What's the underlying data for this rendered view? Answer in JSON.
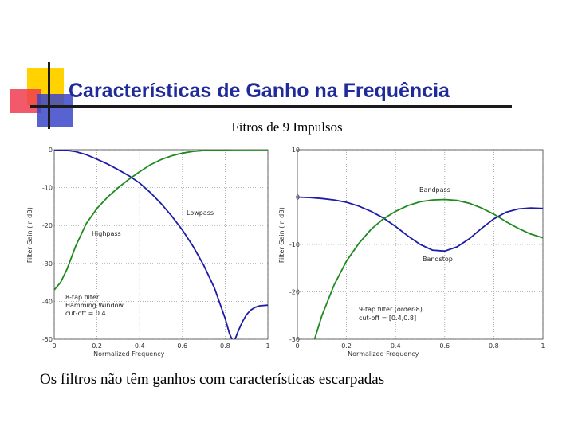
{
  "slide": {
    "title": "Características de Ganho na Frequência",
    "subtitle": "Fitros de 9 Impulsos",
    "caption": "Os filtros não têm ganhos com características escarpadas"
  },
  "colors": {
    "title": "#1f2a9b",
    "blue_curve": "#1c1ca8",
    "green_curve": "#1e8a1e"
  },
  "chart_data": [
    {
      "type": "line",
      "xlabel": "Normalized Frequency",
      "ylabel": "Filter Gain (in dB)",
      "xlim": [
        0,
        1
      ],
      "ylim": [
        -50,
        0
      ],
      "xticks": [
        0,
        0.2,
        0.4,
        0.6,
        0.8,
        1
      ],
      "yticks": [
        0,
        -10,
        -20,
        -30,
        -40,
        -50
      ],
      "grid": true,
      "annotations": [
        "Lowpass",
        "Highpass",
        "8-tap filter",
        "Hamming Window",
        "cut-off = 0.4"
      ],
      "series": [
        {
          "name": "Lowpass",
          "color": "blue",
          "x": [
            0,
            0.05,
            0.1,
            0.15,
            0.2,
            0.25,
            0.3,
            0.35,
            0.4,
            0.45,
            0.5,
            0.55,
            0.6,
            0.65,
            0.7,
            0.75,
            0.8,
            0.82,
            0.84,
            0.86,
            0.88,
            0.9,
            0.92,
            0.94,
            0.96,
            0.98,
            1.0
          ],
          "y": [
            0,
            -0.1,
            -0.5,
            -1.3,
            -2.5,
            -3.8,
            -5.3,
            -6.9,
            -8.8,
            -11.3,
            -14.2,
            -17.5,
            -21.2,
            -25.5,
            -30.5,
            -36.5,
            -44.5,
            -48.5,
            -51,
            -48,
            -45.5,
            -43.5,
            -42.3,
            -41.6,
            -41.2,
            -41.1,
            -41
          ]
        },
        {
          "name": "Highpass",
          "color": "green",
          "x": [
            0,
            0.03,
            0.06,
            0.1,
            0.15,
            0.2,
            0.25,
            0.3,
            0.35,
            0.4,
            0.45,
            0.5,
            0.55,
            0.6,
            0.65,
            0.7,
            0.75,
            0.8,
            0.85,
            0.9,
            0.95,
            1.0
          ],
          "y": [
            -37,
            -35,
            -31.5,
            -25.5,
            -19.5,
            -15.5,
            -12.5,
            -10,
            -7.8,
            -5.8,
            -4,
            -2.6,
            -1.6,
            -0.9,
            -0.45,
            -0.2,
            -0.08,
            -0.02,
            0,
            0,
            0,
            0
          ]
        }
      ]
    },
    {
      "type": "line",
      "xlabel": "Normalized Frequency",
      "ylabel": "Filter Gain (in dB)",
      "xlim": [
        0,
        1
      ],
      "ylim": [
        -30,
        10
      ],
      "xticks": [
        0,
        0.2,
        0.4,
        0.6,
        0.8,
        1
      ],
      "yticks": [
        10,
        0,
        -10,
        -20,
        -30
      ],
      "grid": true,
      "annotations": [
        "Bandpass",
        "Bandstop",
        "9-tap filter (order-8)",
        "cut-off = [0.4,0.8]"
      ],
      "series": [
        {
          "name": "Bandstop",
          "color": "blue",
          "x": [
            0,
            0.05,
            0.1,
            0.15,
            0.2,
            0.25,
            0.3,
            0.35,
            0.4,
            0.45,
            0.5,
            0.55,
            0.6,
            0.65,
            0.7,
            0.75,
            0.8,
            0.85,
            0.9,
            0.95,
            1.0
          ],
          "y": [
            0,
            -0.1,
            -0.3,
            -0.6,
            -1.1,
            -1.9,
            -3,
            -4.4,
            -6.2,
            -8.2,
            -10,
            -11.2,
            -11.4,
            -10.5,
            -8.8,
            -6.6,
            -4.6,
            -3.2,
            -2.5,
            -2.3,
            -2.4
          ]
        },
        {
          "name": "Bandpass",
          "color": "green",
          "x": [
            0.07,
            0.1,
            0.15,
            0.2,
            0.25,
            0.3,
            0.35,
            0.4,
            0.45,
            0.5,
            0.55,
            0.6,
            0.65,
            0.7,
            0.75,
            0.8,
            0.85,
            0.9,
            0.95,
            1.0
          ],
          "y": [
            -30,
            -25,
            -18.5,
            -13.5,
            -9.8,
            -6.8,
            -4.6,
            -3,
            -1.8,
            -1,
            -0.6,
            -0.5,
            -0.7,
            -1.3,
            -2.3,
            -3.6,
            -5.2,
            -6.6,
            -7.8,
            -8.6
          ]
        }
      ]
    }
  ]
}
